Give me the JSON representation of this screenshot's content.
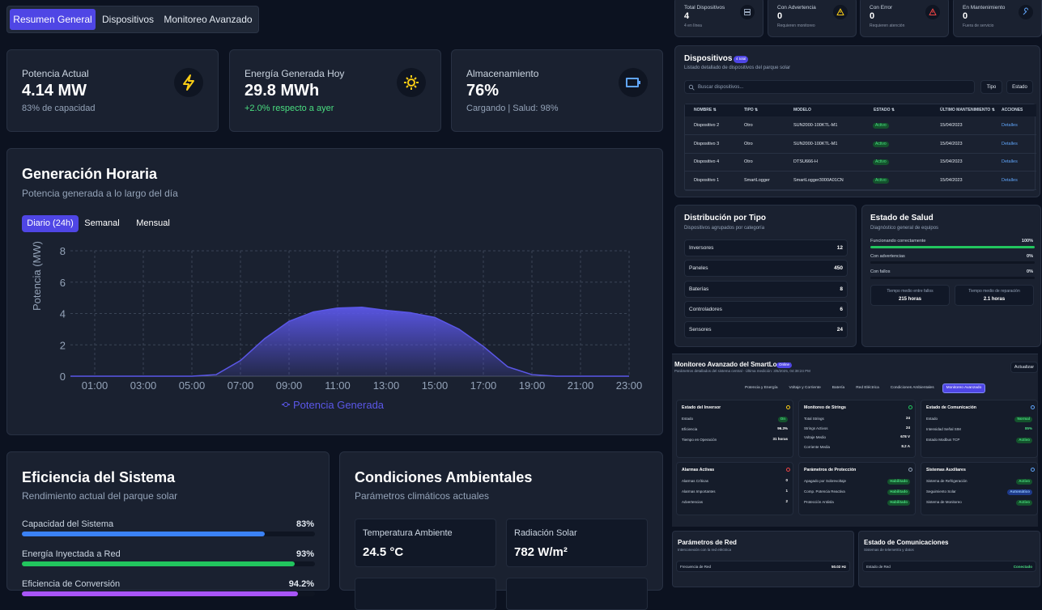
{
  "tabs": [
    "Resumen General",
    "Dispositivos",
    "Monitoreo Avanzado"
  ],
  "stats": [
    {
      "label": "Potencia Actual",
      "value": "4.14 MW",
      "note": "83% de capacidad"
    },
    {
      "label": "Energía Generada Hoy",
      "value": "29.8 MWh",
      "note": "+2.0% respecto a ayer"
    },
    {
      "label": "Almacenamiento",
      "value": "76%",
      "note": "Cargando | Salud: 98%"
    }
  ],
  "chart_data": {
    "type": "area",
    "title": "Generación Horaria",
    "subtitle": "Potencia generada a lo largo del día",
    "periods": [
      "Diario (24h)",
      "Semanal",
      "Mensual"
    ],
    "y_label": "Potencia (MW)",
    "categories": [
      null,
      "01:00",
      null,
      "03:00",
      null,
      "05:00",
      null,
      "07:00",
      null,
      "09:00",
      null,
      "11:00",
      null,
      "13:00",
      null,
      "15:00",
      null,
      "17:00",
      null,
      "19:00",
      null,
      "21:00",
      null,
      "23:00"
    ],
    "series": [
      {
        "name": "Potencia Generada",
        "color": "#5b57e8",
        "values": [
          0,
          0,
          0,
          0,
          0,
          0,
          0.1,
          1.0,
          2.4,
          3.5,
          4.1,
          4.35,
          4.4,
          4.2,
          4.05,
          3.75,
          3.0,
          1.9,
          0.6,
          0.1,
          0,
          0,
          0,
          0
        ]
      }
    ],
    "ylim": [
      0,
      8
    ],
    "yticks": [
      0,
      2,
      4,
      6,
      8
    ],
    "grid": true
  },
  "efficiency": {
    "title": "Eficiencia del Sistema",
    "subtitle": "Rendimiento actual del parque solar",
    "xlim": [
      0,
      100
    ],
    "items": [
      {
        "label": "Capacidad del Sistema",
        "value": 83,
        "value_label": "83%",
        "color": "#3b82f6"
      },
      {
        "label": "Energía Inyectada a Red",
        "value": 93,
        "value_label": "93%",
        "color": "#22c55e"
      },
      {
        "label": "Eficiencia de Conversión",
        "value": 94.2,
        "value_label": "94.2%",
        "color": "#a855f7"
      }
    ]
  },
  "environment": {
    "title": "Condiciones Ambientales",
    "subtitle": "Parámetros climáticos actuales",
    "items": [
      {
        "label": "Temperatura Ambiente",
        "value": "24.5 °C"
      },
      {
        "label": "Radiación Solar",
        "value": "782 W/m²"
      }
    ]
  },
  "summary": [
    {
      "label": "Total Dispositivos",
      "value": "4",
      "note": "4 en línea"
    },
    {
      "label": "Con Advertencia",
      "value": "0",
      "note": "Requieren monitoreo"
    },
    {
      "label": "Con Error",
      "value": "0",
      "note": "Requieren atención"
    },
    {
      "label": "En Mantenimiento",
      "value": "0",
      "note": "Fuera de servicio"
    }
  ],
  "devices": {
    "title": "Dispositivos",
    "badge": "4 total",
    "subtitle": "Listado detallado de dispositivos del parque solar",
    "search": "Buscar dispositivos...",
    "filters": [
      "Tipo",
      "Estado"
    ],
    "columns": [
      "NOMBRE ⇅",
      "TIPO ⇅",
      "MODELO",
      "ESTADO ⇅",
      "ÚLTIMO MANTENIMIENTO ⇅",
      "ACCIONES"
    ],
    "rows": [
      [
        "Dispositivo 2",
        "Otro",
        "SUN2000-100KTL-M1",
        "Activo",
        "15/04/2023",
        "Detalles"
      ],
      [
        "Dispositivo 3",
        "Otro",
        "SUN2000-100KTL-M1",
        "Activo",
        "15/04/2023",
        "Detalles"
      ],
      [
        "Dispositivo 4",
        "Otro",
        "DTSU666-H",
        "Activo",
        "15/04/2023",
        "Detalles"
      ],
      [
        "Dispositivo 1",
        "SmartLogger",
        "SmartLogger3000A01CN",
        "Activo",
        "15/04/2023",
        "Detalles"
      ]
    ]
  },
  "distribution": {
    "title": "Distribución por Tipo",
    "subtitle": "Dispositivos agrupados por categoría",
    "items": [
      [
        "Inversores",
        "12"
      ],
      [
        "Paneles",
        "450"
      ],
      [
        "Baterías",
        "8"
      ],
      [
        "Controladores",
        "6"
      ],
      [
        "Sensores",
        "24"
      ]
    ]
  },
  "health": {
    "title": "Estado de Salud",
    "subtitle": "Diagnóstico general de equipos",
    "xlim": [
      0,
      100
    ],
    "items": [
      {
        "label": "Funcionando correctamente",
        "value": 100,
        "value_label": "100%"
      },
      {
        "label": "Con advertencias",
        "value": 0,
        "value_label": "0%"
      },
      {
        "label": "Con fallos",
        "value": 0,
        "value_label": "0%"
      }
    ],
    "stats": [
      {
        "label": "Tiempo medio entre fallos",
        "value": "215 horas"
      },
      {
        "label": "Tiempo medio de reparación",
        "value": "2.1 horas"
      }
    ]
  },
  "advanced": {
    "title": "Monitoreo Avanzado del SmartLogger",
    "badge": "Online",
    "subtitle": "Parámetros detallados del sistema central - Última medición: 3/6/2025, 04:38:24 PM",
    "refresh": "Actualizar",
    "tabs": [
      "Potencia y Energía",
      "Voltaje y Corriente",
      "Batería",
      "Red Eléctrica",
      "Condiciones Ambientales",
      "Monitoreo Avanzado"
    ],
    "panels": [
      {
        "title": "Estado del Inversor",
        "rows": [
          [
            "Estado",
            "On"
          ],
          [
            "Eficiencia",
            "96.3%"
          ],
          [
            "Tiempo en Operación",
            "31 horas"
          ]
        ]
      },
      {
        "title": "Monitoreo de Strings",
        "rows": [
          [
            "Total Strings",
            "24"
          ],
          [
            "Strings Activos",
            "24"
          ],
          [
            "Voltaje Medio",
            "678 V"
          ],
          [
            "Corriente Media",
            "8.2 A"
          ]
        ]
      },
      {
        "title": "Estado de Comunicación",
        "rows": [
          [
            "Estado",
            "Normal"
          ],
          [
            "Intensidad Señal SIM",
            "85%"
          ],
          [
            "Estado Modbus TCP",
            "Activo"
          ]
        ]
      },
      {
        "title": "Alarmas Activas",
        "rows": [
          [
            "Alarmas Críticas",
            "0"
          ],
          [
            "Alarmas Importantes",
            "1"
          ],
          [
            "Advertencias",
            "2"
          ]
        ]
      },
      {
        "title": "Parámetros de Protección",
        "rows": [
          [
            "Apagado por Sobrevoltaje",
            "Habilitado"
          ],
          [
            "Comp. Potencia Reactiva",
            "Habilitado"
          ],
          [
            "Protección Antiisla",
            "Habilitado"
          ]
        ]
      },
      {
        "title": "Sistemas Auxiliares",
        "rows": [
          [
            "Sistema de Refrigeración",
            "Activo"
          ],
          [
            "Seguimiento Solar",
            "Automático"
          ],
          [
            "Sistema de Monitoreo",
            "Activo"
          ]
        ]
      }
    ]
  },
  "grid_params": {
    "title": "Parámetros de Red",
    "subtitle": "Interconexión con la red eléctrica",
    "rows": [
      [
        "Frecuencia de Red",
        "50.02 Hz"
      ]
    ]
  },
  "comms": {
    "title": "Estado de Comunicaciones",
    "subtitle": "Sistemas de telemetría y datos",
    "rows": [
      [
        "Estado de Red",
        "Conectado"
      ]
    ]
  }
}
